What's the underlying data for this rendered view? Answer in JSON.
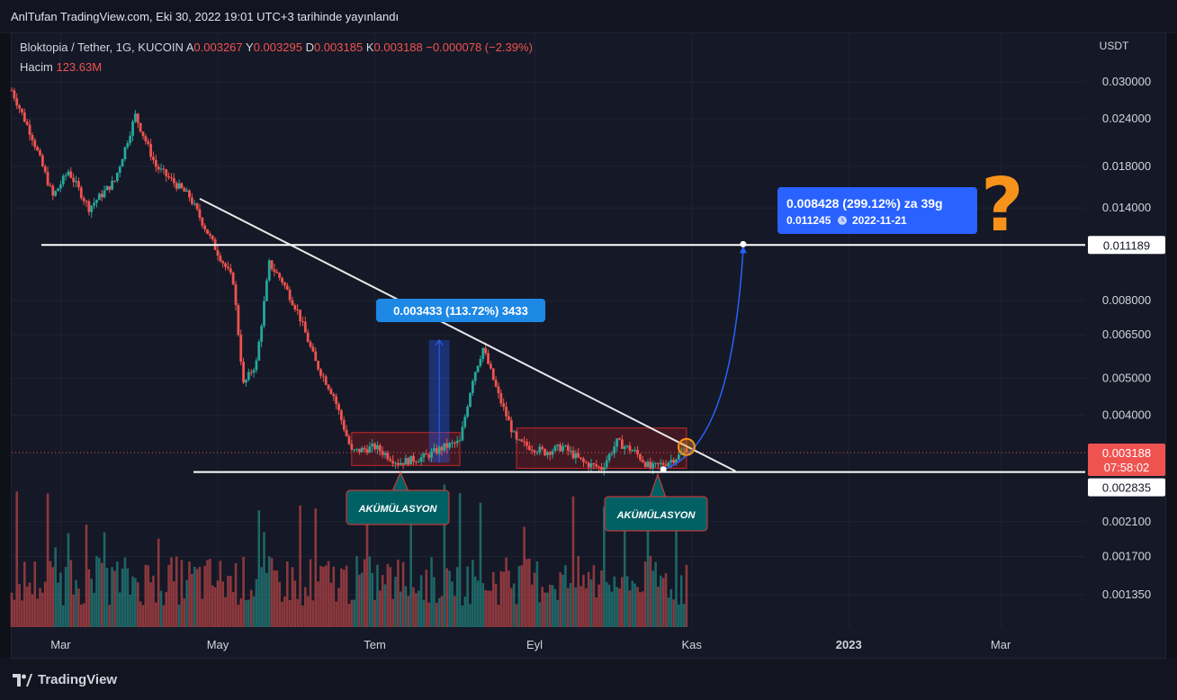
{
  "header": {
    "published": "AnlTufan TradingView.com, Eki 30, 2022 19:01 UTC+3 tarihinde yayınlandı"
  },
  "legend": {
    "symbol": "Bloktopia / Tether, 1G, KUCOIN",
    "open_label": "A",
    "open": "0.003267",
    "high_label": "Y",
    "high": "0.003295",
    "low_label": "D",
    "low": "0.003185",
    "close_label": "K",
    "close": "0.003188",
    "change": "−0.000078 (−2.39%)",
    "volume_label": "Hacim",
    "volume": "123.63M"
  },
  "price_axis": {
    "currency": "USDT",
    "ticks": [
      "0.030000",
      "0.024000",
      "0.018000",
      "0.014000",
      "0.011189",
      "0.008000",
      "0.006500",
      "0.005000",
      "0.004000",
      "0.003188",
      "0.002835",
      "0.002100",
      "0.001700",
      "0.001350"
    ],
    "last_price": "0.003188",
    "countdown": "07:58:02",
    "resistance_label": "0.011189",
    "support_label": "0.002835"
  },
  "time_axis": {
    "labels": [
      "Mar",
      "May",
      "Tem",
      "Eyl",
      "Kas",
      "2023",
      "Mar"
    ]
  },
  "annotations": {
    "measure_1": "0.003433 (113.72%) 3433",
    "target_line1": "0.008428 (299.12%) za 39g",
    "target_line2_value": "0.011245",
    "target_line2_date": "2022-11-21",
    "accumulation_1": "AKÜMÜLASYON",
    "accumulation_2": "AKÜMÜLASYON",
    "question": "?"
  },
  "colors": {
    "up": "#26a69a",
    "down": "#ef5350",
    "background": "#151826",
    "accent": "#f7931a",
    "callout": "#2962ff"
  },
  "footer": {
    "brand": "TradingView"
  },
  "chart_data": {
    "type": "candlestick",
    "symbol": "Bloktopia / Tether, 1G, KUCOIN",
    "y_scale": "log",
    "ylim": [
      0.0012,
      0.034
    ],
    "x_range": [
      "2022-02-10",
      "2023-03-31"
    ],
    "anchors": [
      {
        "date": "2022-02-10",
        "price": 0.0285
      },
      {
        "date": "2022-02-18",
        "price": 0.0215
      },
      {
        "date": "2022-02-26",
        "price": 0.015
      },
      {
        "date": "2022-03-04",
        "price": 0.0175
      },
      {
        "date": "2022-03-12",
        "price": 0.014
      },
      {
        "date": "2022-03-22",
        "price": 0.0165
      },
      {
        "date": "2022-03-30",
        "price": 0.0245
      },
      {
        "date": "2022-04-07",
        "price": 0.018
      },
      {
        "date": "2022-04-20",
        "price": 0.015
      },
      {
        "date": "2022-04-30",
        "price": 0.011
      },
      {
        "date": "2022-05-07",
        "price": 0.009
      },
      {
        "date": "2022-05-11",
        "price": 0.0048
      },
      {
        "date": "2022-05-16",
        "price": 0.0055
      },
      {
        "date": "2022-05-21",
        "price": 0.01
      },
      {
        "date": "2022-05-26",
        "price": 0.009
      },
      {
        "date": "2022-06-01",
        "price": 0.0075
      },
      {
        "date": "2022-06-08",
        "price": 0.0055
      },
      {
        "date": "2022-06-15",
        "price": 0.0045
      },
      {
        "date": "2022-06-22",
        "price": 0.0032
      },
      {
        "date": "2022-07-01",
        "price": 0.0033
      },
      {
        "date": "2022-07-10",
        "price": 0.003
      },
      {
        "date": "2022-07-20",
        "price": 0.0031
      },
      {
        "date": "2022-07-28",
        "price": 0.0033
      },
      {
        "date": "2022-08-03",
        "price": 0.0034
      },
      {
        "date": "2022-08-08",
        "price": 0.005
      },
      {
        "date": "2022-08-12",
        "price": 0.006
      },
      {
        "date": "2022-08-18",
        "price": 0.0045
      },
      {
        "date": "2022-08-25",
        "price": 0.0034
      },
      {
        "date": "2022-09-05",
        "price": 0.0032
      },
      {
        "date": "2022-09-12",
        "price": 0.0033
      },
      {
        "date": "2022-09-20",
        "price": 0.003
      },
      {
        "date": "2022-09-27",
        "price": 0.0029
      },
      {
        "date": "2022-10-03",
        "price": 0.0034
      },
      {
        "date": "2022-10-10",
        "price": 0.0032
      },
      {
        "date": "2022-10-16",
        "price": 0.0029
      },
      {
        "date": "2022-10-22",
        "price": 0.003
      },
      {
        "date": "2022-10-30",
        "price": 0.0032
      }
    ],
    "volume_axis_max": 100,
    "levels": {
      "resistance": 0.011189,
      "support": 0.002835,
      "last": 0.003188
    },
    "accumulation_zones": [
      {
        "start": "2022-06-22",
        "end": "2022-08-03",
        "low": 0.00295,
        "high": 0.0036
      },
      {
        "start": "2022-08-25",
        "end": "2022-10-30",
        "low": 0.0029,
        "high": 0.0037
      }
    ],
    "trendline": {
      "start": {
        "date": "2022-04-24",
        "price": 0.0148
      },
      "end": {
        "date": "2022-11-18",
        "price": 0.00285
      }
    },
    "measure": {
      "start": "2022-07-22",
      "end": "2022-07-30",
      "low": 0.003,
      "high": 0.0063
    },
    "projection": {
      "start": {
        "date": "2022-10-21",
        "price": 0.00288
      },
      "end": {
        "date": "2022-11-21",
        "price": 0.011245
      }
    }
  }
}
